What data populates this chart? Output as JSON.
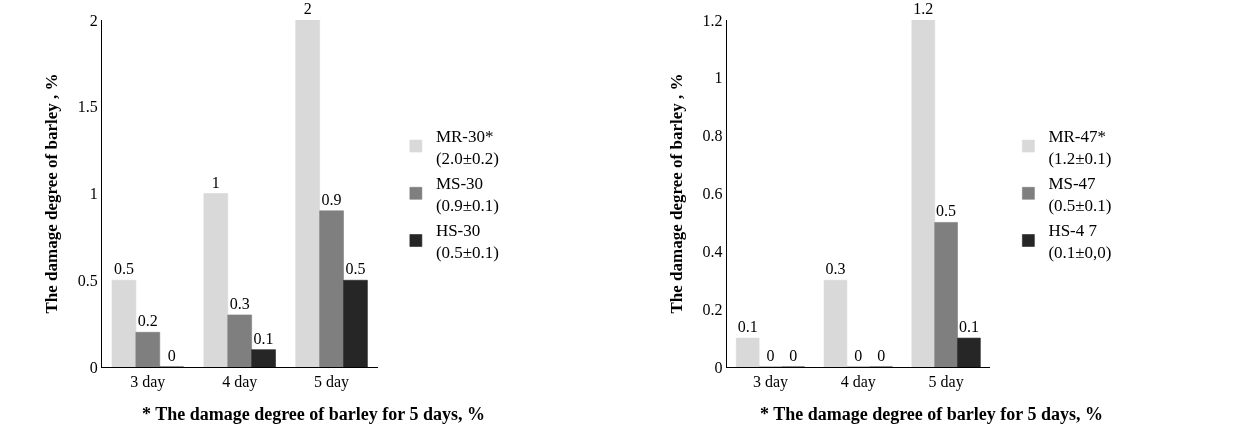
{
  "chart_data": [
    {
      "type": "bar",
      "ylabel": "The damage degree of barley , %",
      "categories": [
        "3 day",
        "4 day",
        "5 day"
      ],
      "series": [
        {
          "name": "MR-30*\n(2.0±0.2)",
          "color": "#d9d9d9",
          "values": [
            0.5,
            1,
            2
          ]
        },
        {
          "name": "MS-30\n(0.9±0.1)",
          "color": "#7f7f7f",
          "values": [
            0.2,
            0.3,
            0.9
          ]
        },
        {
          "name": "HS-30\n(0.5±0.1)",
          "color": "#262626",
          "values": [
            0,
            0.1,
            0.5
          ]
        }
      ],
      "ylim": [
        0,
        2
      ],
      "yticks": [
        0,
        0.5,
        1,
        1.5,
        2
      ],
      "grid": false,
      "legend": "right",
      "data_labels": true,
      "annotations": [
        "* The damage degree of barley for 5 days, %"
      ]
    },
    {
      "type": "bar",
      "ylabel": "The damage degree of barley , %",
      "categories": [
        "3 day",
        "4 day",
        "5 day"
      ],
      "series": [
        {
          "name": "MR-47*\n(1.2±0.1)",
          "color": "#d9d9d9",
          "values": [
            0.1,
            0.3,
            1.2
          ]
        },
        {
          "name": "MS-47\n(0.5±0.1)",
          "color": "#7f7f7f",
          "values": [
            0,
            0,
            0.5
          ]
        },
        {
          "name": "HS-4 7\n(0.1±0,0)",
          "color": "#262626",
          "values": [
            0,
            0,
            0.1
          ]
        }
      ],
      "ylim": [
        0,
        1.2
      ],
      "yticks": [
        0,
        0.2,
        0.4,
        0.6,
        0.8,
        1,
        1.2
      ],
      "grid": false,
      "legend": "right",
      "data_labels": true,
      "annotations": [
        "* The damage degree of barley for 5 days, %"
      ]
    }
  ]
}
